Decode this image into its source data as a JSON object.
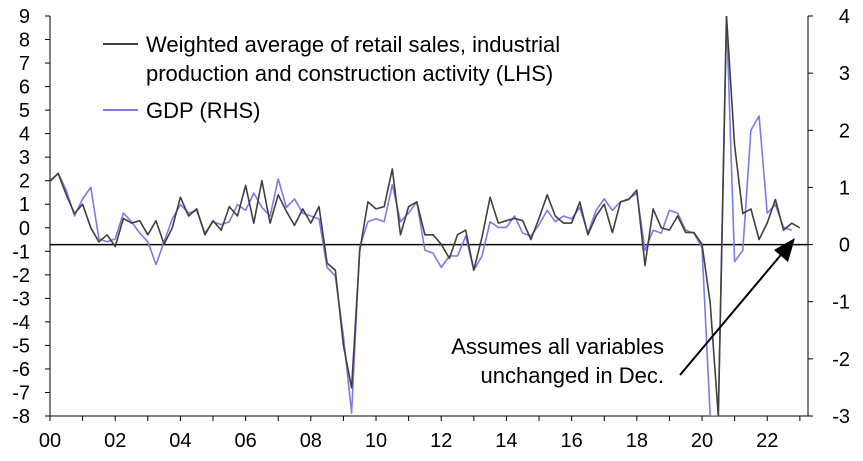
{
  "chart_data": {
    "type": "line",
    "title": "",
    "xlabel": "",
    "ylabel_left": "",
    "ylabel_right": "",
    "x_tick_labels": [
      "00",
      "02",
      "04",
      "06",
      "08",
      "10",
      "12",
      "14",
      "16",
      "18",
      "20",
      "22"
    ],
    "x_range": [
      2000,
      2023.25
    ],
    "y_left_range": [
      -8,
      9
    ],
    "y_right_range": [
      -3,
      4
    ],
    "y_left_ticks": [
      9,
      8,
      7,
      6,
      5,
      4,
      3,
      2,
      1,
      0,
      -1,
      -2,
      -3,
      -4,
      -5,
      -6,
      -7,
      -8
    ],
    "y_right_ticks": [
      4,
      3,
      2,
      1,
      0,
      -1,
      -2,
      -3
    ],
    "grid": false,
    "legend_position": "top-left",
    "colors": {
      "activity": "#404040",
      "gdp": "#7b7be8",
      "axis": "#000000"
    },
    "series": [
      {
        "name": "Weighted average of retail sales, industrial production and construction activity (LHS)",
        "axis": "left",
        "x": [
          2000.0,
          2000.25,
          2000.5,
          2000.75,
          2001.0,
          2001.25,
          2001.5,
          2001.75,
          2002.0,
          2002.25,
          2002.5,
          2002.75,
          2003.0,
          2003.25,
          2003.5,
          2003.75,
          2004.0,
          2004.25,
          2004.5,
          2004.75,
          2005.0,
          2005.25,
          2005.5,
          2005.75,
          2006.0,
          2006.25,
          2006.5,
          2006.75,
          2007.0,
          2007.25,
          2007.5,
          2007.75,
          2008.0,
          2008.25,
          2008.5,
          2008.75,
          2009.0,
          2009.25,
          2009.5,
          2009.75,
          2010.0,
          2010.25,
          2010.5,
          2010.75,
          2011.0,
          2011.25,
          2011.5,
          2011.75,
          2012.0,
          2012.25,
          2012.5,
          2012.75,
          2013.0,
          2013.25,
          2013.5,
          2013.75,
          2014.0,
          2014.25,
          2014.5,
          2014.75,
          2015.0,
          2015.25,
          2015.5,
          2015.75,
          2016.0,
          2016.25,
          2016.5,
          2016.75,
          2017.0,
          2017.25,
          2017.5,
          2017.75,
          2018.0,
          2018.25,
          2018.5,
          2018.75,
          2019.0,
          2019.25,
          2019.5,
          2019.75,
          2020.0,
          2020.25,
          2020.5,
          2020.75,
          2021.0,
          2021.25,
          2021.5,
          2021.75,
          2022.0,
          2022.25,
          2022.5,
          2022.75,
          2023.0
        ],
        "values": [
          2.0,
          2.3,
          1.4,
          0.6,
          1.0,
          0.0,
          -0.6,
          -0.3,
          -0.8,
          0.4,
          0.2,
          0.3,
          -0.3,
          0.3,
          -0.7,
          0.0,
          1.3,
          0.5,
          0.8,
          -0.3,
          0.3,
          -0.1,
          0.9,
          0.5,
          1.8,
          0.2,
          2.0,
          0.2,
          1.4,
          0.7,
          0.1,
          0.8,
          0.2,
          0.9,
          -1.5,
          -1.8,
          -5.0,
          -6.8,
          -1.0,
          1.1,
          0.8,
          0.9,
          2.5,
          -0.3,
          0.9,
          1.1,
          -0.3,
          -0.3,
          -0.7,
          -1.3,
          -0.3,
          -0.1,
          -1.8,
          -0.4,
          1.3,
          0.2,
          0.3,
          0.4,
          0.3,
          -0.5,
          0.4,
          1.4,
          0.5,
          0.2,
          0.2,
          1.1,
          -0.3,
          0.5,
          1.0,
          -0.2,
          1.1,
          1.2,
          1.6,
          -1.6,
          0.8,
          0.0,
          -0.1,
          0.5,
          -0.2,
          -0.2,
          -0.7,
          -3.2,
          -8.0,
          9.0,
          3.5,
          0.6,
          0.8,
          -0.5,
          0.2,
          1.2,
          -0.1,
          0.2,
          0.0
        ]
      },
      {
        "name": "GDP (RHS)",
        "axis": "right",
        "x": [
          2000.0,
          2000.25,
          2000.5,
          2000.75,
          2001.0,
          2001.25,
          2001.5,
          2001.75,
          2002.0,
          2002.25,
          2002.5,
          2002.75,
          2003.0,
          2003.25,
          2003.5,
          2003.75,
          2004.0,
          2004.25,
          2004.5,
          2004.75,
          2005.0,
          2005.25,
          2005.5,
          2005.75,
          2006.0,
          2006.25,
          2006.5,
          2006.75,
          2007.0,
          2007.25,
          2007.5,
          2007.75,
          2008.0,
          2008.25,
          2008.5,
          2008.75,
          2009.0,
          2009.25,
          2009.5,
          2009.75,
          2010.0,
          2010.25,
          2010.5,
          2010.75,
          2011.0,
          2011.25,
          2011.5,
          2011.75,
          2012.0,
          2012.25,
          2012.5,
          2012.75,
          2013.0,
          2013.25,
          2013.5,
          2013.75,
          2014.0,
          2014.25,
          2014.5,
          2014.75,
          2015.0,
          2015.25,
          2015.5,
          2015.75,
          2016.0,
          2016.25,
          2016.5,
          2016.75,
          2017.0,
          2017.25,
          2017.5,
          2017.75,
          2018.0,
          2018.25,
          2018.5,
          2018.75,
          2019.0,
          2019.25,
          2019.5,
          2019.75,
          2020.0,
          2020.25,
          2020.5,
          2020.75,
          2021.0,
          2021.25,
          2021.5,
          2021.75,
          2022.0,
          2022.25,
          2022.5,
          2022.75
        ],
        "values": [
          1.1,
          1.25,
          0.95,
          0.5,
          0.8,
          1.0,
          0.1,
          0.05,
          0.1,
          0.55,
          0.4,
          0.2,
          0.05,
          -0.35,
          0.05,
          0.45,
          0.7,
          0.55,
          0.6,
          0.2,
          0.4,
          0.35,
          0.4,
          0.7,
          0.6,
          0.9,
          0.65,
          0.5,
          1.15,
          0.65,
          0.8,
          0.55,
          0.5,
          0.45,
          -0.4,
          -0.55,
          -1.6,
          -2.95,
          -0.05,
          0.4,
          0.45,
          0.4,
          1.05,
          0.4,
          0.55,
          0.75,
          -0.1,
          -0.15,
          -0.4,
          -0.2,
          -0.2,
          0.15,
          -0.45,
          -0.2,
          0.4,
          0.3,
          0.3,
          0.5,
          0.2,
          0.15,
          0.35,
          0.6,
          0.4,
          0.5,
          0.45,
          0.65,
          0.2,
          0.6,
          0.8,
          0.6,
          0.75,
          0.8,
          0.9,
          -0.1,
          0.25,
          0.2,
          0.6,
          0.55,
          0.25,
          0.2,
          -0.05,
          -3.0,
          -3.0,
          4.0,
          -0.3,
          -0.1,
          2.0,
          2.25,
          0.55,
          0.7,
          0.3,
          0.25
        ]
      }
    ],
    "annotations": [
      {
        "lines": [
          "Assumes all variables",
          "unchanged in Dec."
        ]
      }
    ]
  }
}
